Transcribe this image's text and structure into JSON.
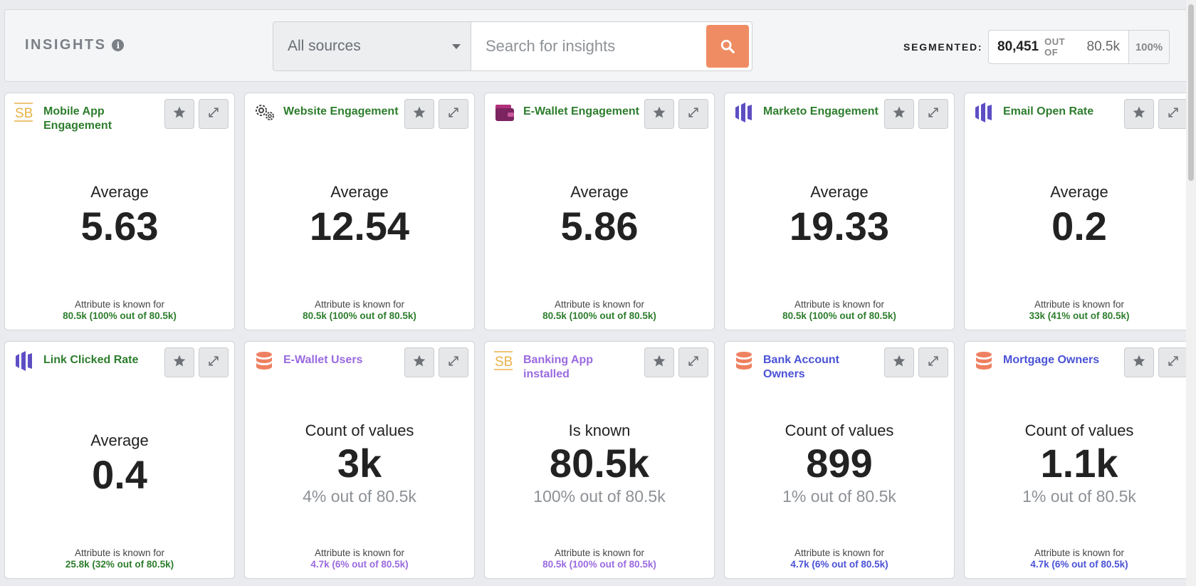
{
  "header": {
    "title": "INSIGHTS",
    "info_glyph": "i",
    "source_select": "All sources",
    "search_placeholder": "Search for insights",
    "segmented_label": "SEGMENTED:",
    "segmented_count": "80,451",
    "segmented_outof": "OUT OF",
    "segmented_total": "80.5k",
    "segmented_percent": "100%"
  },
  "colors": {
    "accent_orange": "#ef8c64",
    "title_green": "#2d7d2d",
    "title_purple": "#9a6ae0",
    "title_blue": "#4a52d6"
  },
  "known_label": "Attribute is known for",
  "cards": [
    {
      "title": "Mobile App Engagement",
      "icon": "sb-icon",
      "title_color": "green",
      "metric_label": "Average",
      "value": "5.63",
      "sub": "",
      "known": "80.5k (100% out of 80.5k)"
    },
    {
      "title": "Website Engagement",
      "icon": "gears-icon",
      "title_color": "green",
      "metric_label": "Average",
      "value": "12.54",
      "sub": "",
      "known": "80.5k (100% out of 80.5k)"
    },
    {
      "title": "E-Wallet Engagement",
      "icon": "wallet-icon",
      "title_color": "green",
      "metric_label": "Average",
      "value": "5.86",
      "sub": "",
      "known": "80.5k (100% out of 80.5k)"
    },
    {
      "title": "Marketo Engagement",
      "icon": "marketo-icon",
      "title_color": "green",
      "metric_label": "Average",
      "value": "19.33",
      "sub": "",
      "known": "80.5k (100% out of 80.5k)"
    },
    {
      "title": "Email Open Rate",
      "icon": "marketo-icon",
      "title_color": "green",
      "metric_label": "Average",
      "value": "0.2",
      "sub": "",
      "known": "33k (41% out of 80.5k)"
    },
    {
      "title": "Link Clicked Rate",
      "icon": "marketo-icon",
      "title_color": "green",
      "metric_label": "Average",
      "value": "0.4",
      "sub": "",
      "known": "25.8k (32% out of 80.5k)"
    },
    {
      "title": "E-Wallet Users",
      "icon": "database-icon",
      "title_color": "purple",
      "metric_label": "Count of values",
      "value": "3k",
      "sub": "4% out of 80.5k",
      "known": "4.7k (6% out of 80.5k)"
    },
    {
      "title": "Banking App installed",
      "icon": "sb-icon",
      "title_color": "purple",
      "metric_label": "Is known",
      "value": "80.5k",
      "sub": "100% out of 80.5k",
      "known": "80.5k (100% out of 80.5k)"
    },
    {
      "title": "Bank Account Owners",
      "icon": "database-icon",
      "title_color": "blue",
      "metric_label": "Count of values",
      "value": "899",
      "sub": "1% out of 80.5k",
      "known": "4.7k (6% out of 80.5k)"
    },
    {
      "title": "Mortgage Owners",
      "icon": "database-icon",
      "title_color": "blue",
      "metric_label": "Count of values",
      "value": "1.1k",
      "sub": "1% out of 80.5k",
      "known": "4.7k (6% out of 80.5k)"
    }
  ]
}
